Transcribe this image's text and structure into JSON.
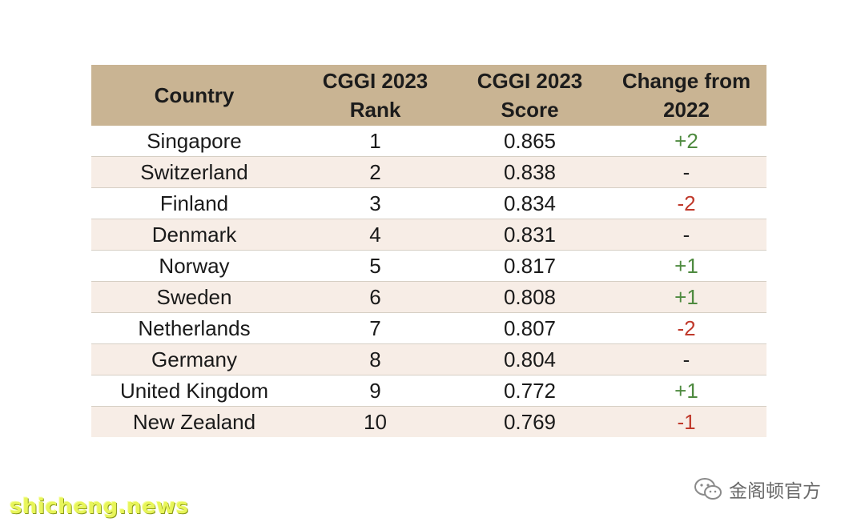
{
  "table": {
    "headers": [
      {
        "line1": "Country",
        "line2": ""
      },
      {
        "line1": "CGGI 2023",
        "line2": "Rank"
      },
      {
        "line1": "CGGI 2023",
        "line2": "Score"
      },
      {
        "line1": "Change from",
        "line2": "2022"
      }
    ],
    "rows": [
      {
        "country": "Singapore",
        "rank": "1",
        "score": "0.865",
        "change": "+2",
        "trend": "pos"
      },
      {
        "country": "Switzerland",
        "rank": "2",
        "score": "0.838",
        "change": "-",
        "trend": "none"
      },
      {
        "country": "Finland",
        "rank": "3",
        "score": "0.834",
        "change": "-2",
        "trend": "neg"
      },
      {
        "country": "Denmark",
        "rank": "4",
        "score": "0.831",
        "change": "-",
        "trend": "none"
      },
      {
        "country": "Norway",
        "rank": "5",
        "score": "0.817",
        "change": "+1",
        "trend": "pos"
      },
      {
        "country": "Sweden",
        "rank": "6",
        "score": "0.808",
        "change": "+1",
        "trend": "pos"
      },
      {
        "country": "Netherlands",
        "rank": "7",
        "score": "0.807",
        "change": "-2",
        "trend": "neg"
      },
      {
        "country": "Germany",
        "rank": "8",
        "score": "0.804",
        "change": "-",
        "trend": "none"
      },
      {
        "country": "United Kingdom",
        "rank": "9",
        "score": "0.772",
        "change": "+1",
        "trend": "pos"
      },
      {
        "country": "New Zealand",
        "rank": "10",
        "score": "0.769",
        "change": "-1",
        "trend": "neg"
      }
    ]
  },
  "colors": {
    "header_bg": "#c9b493",
    "row_alt_bg": "#f7ede6",
    "positive": "#4e8a3f",
    "negative": "#c0392b"
  },
  "watermarks": {
    "wechat_account": "金阁顿官方",
    "wechat_icon": "wechat-icon",
    "site": "shicheng.news"
  }
}
